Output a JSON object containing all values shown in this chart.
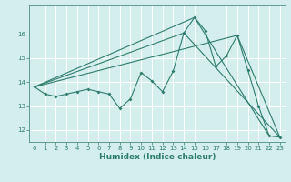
{
  "xlabel": "Humidex (Indice chaleur)",
  "ylabel": "",
  "bg_color": "#d4eeee",
  "grid_color": "#ffffff",
  "line_color": "#2e7d6e",
  "xlim": [
    -0.5,
    23.5
  ],
  "ylim": [
    11.5,
    17.2
  ],
  "yticks": [
    12,
    13,
    14,
    15,
    16
  ],
  "xticks": [
    0,
    1,
    2,
    3,
    4,
    5,
    6,
    7,
    8,
    9,
    10,
    11,
    12,
    13,
    14,
    15,
    16,
    17,
    18,
    19,
    20,
    21,
    22,
    23
  ],
  "series": [
    [
      0,
      13.8
    ],
    [
      1,
      13.5
    ],
    [
      2,
      13.4
    ],
    [
      3,
      13.5
    ],
    [
      4,
      13.6
    ],
    [
      5,
      13.7
    ],
    [
      6,
      13.6
    ],
    [
      7,
      13.5
    ],
    [
      8,
      12.9
    ],
    [
      9,
      13.3
    ],
    [
      10,
      14.4
    ],
    [
      11,
      14.05
    ],
    [
      12,
      13.6
    ],
    [
      13,
      14.45
    ],
    [
      14,
      16.05
    ],
    [
      15,
      16.7
    ],
    [
      16,
      16.15
    ],
    [
      17,
      14.65
    ],
    [
      18,
      15.1
    ],
    [
      19,
      15.95
    ],
    [
      20,
      14.5
    ],
    [
      21,
      13.0
    ],
    [
      22,
      11.75
    ],
    [
      23,
      11.7
    ]
  ],
  "series2": [
    [
      0,
      13.8
    ],
    [
      14,
      16.05
    ],
    [
      23,
      11.7
    ]
  ],
  "series3": [
    [
      0,
      13.8
    ],
    [
      19,
      15.95
    ],
    [
      23,
      11.7
    ]
  ],
  "series4": [
    [
      0,
      13.8
    ],
    [
      15,
      16.7
    ],
    [
      22,
      11.75
    ]
  ]
}
